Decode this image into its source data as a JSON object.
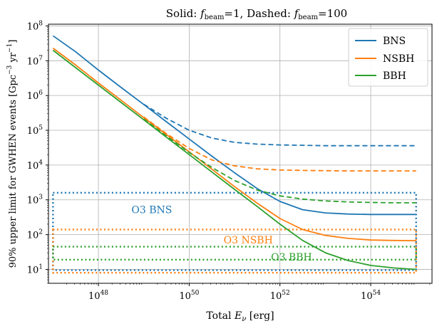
{
  "chart_data": {
    "type": "line",
    "title": "Solid: f_beam=1, Dashed: f_beam=100",
    "title_parts": {
      "prefix": "Solid: ",
      "f1": "f",
      "f1_sub": "beam",
      "eq1": "=1, Dashed: ",
      "f2": "f",
      "f2_sub": "beam",
      "eq2": "=100"
    },
    "xlabel": "Total E_ν [erg]",
    "xlabel_parts": {
      "prefix": "Total ",
      "E": "E",
      "E_sub": "ν",
      "suffix": " [erg]"
    },
    "ylabel": "90% upper limit for GWHEN events [Gpc⁻³ yr⁻¹]",
    "ylabel_parts": {
      "text": "90% upper limit for GWHEN events [Gpc",
      "sup1": "−3",
      "mid": " yr",
      "sup2": "−1",
      "end": "]"
    },
    "x_scale": "log",
    "y_scale": "log",
    "xlim_exp": [
      46.9,
      55.35
    ],
    "ylim_exp": [
      0.6,
      8.05
    ],
    "x_ticks": [
      {
        "value": 1e+48,
        "base": "10",
        "exp": "48"
      },
      {
        "value": 1e+50,
        "base": "10",
        "exp": "50"
      },
      {
        "value": 1e+52,
        "base": "10",
        "exp": "52"
      },
      {
        "value": 1e+54,
        "base": "10",
        "exp": "54"
      }
    ],
    "y_ticks": [
      {
        "value": 10.0,
        "base": "10",
        "exp": "1"
      },
      {
        "value": 100.0,
        "base": "10",
        "exp": "2"
      },
      {
        "value": 1000.0,
        "base": "10",
        "exp": "3"
      },
      {
        "value": 10000.0,
        "base": "10",
        "exp": "4"
      },
      {
        "value": 100000.0,
        "base": "10",
        "exp": "5"
      },
      {
        "value": 1000000.0,
        "base": "10",
        "exp": "6"
      },
      {
        "value": 10000000.0,
        "base": "10",
        "exp": "7"
      },
      {
        "value": 100000000.0,
        "base": "10",
        "exp": "8"
      }
    ],
    "grid": true,
    "legend": {
      "placement": "top-right",
      "entries": [
        {
          "name": "BNS",
          "color": "#1f77b4"
        },
        {
          "name": "NSBH",
          "color": "#ff7f0e"
        },
        {
          "name": "BBH",
          "color": "#2ca02c"
        }
      ]
    },
    "series": [
      {
        "name": "BNS",
        "style": "solid",
        "color": "#1f77b4",
        "x_exp": [
          47.0,
          47.5,
          48.0,
          48.5,
          49.0,
          49.5,
          50.0,
          50.5,
          51.0,
          51.5,
          52.0,
          52.5,
          53.0,
          53.5,
          54.0,
          54.5,
          55.0
        ],
        "y": [
          52000000.0,
          18000000.0,
          5400000.0,
          1700000.0,
          550000.0,
          175000.0,
          56000.0,
          18000.0,
          6000,
          2100,
          900,
          520,
          420,
          390,
          380,
          380,
          380
        ]
      },
      {
        "name": "BNS",
        "style": "dashed",
        "color": "#1f77b4",
        "x_exp": [
          49.0,
          49.5,
          50.0,
          50.5,
          51.0,
          51.5,
          52.0,
          52.5,
          53.0,
          53.5,
          54.0,
          54.5,
          55.0
        ],
        "y": [
          560000.0,
          220000.0,
          100000.0,
          60000.0,
          45000.0,
          40000.0,
          38000.0,
          37000.0,
          36000.0,
          36000.0,
          36000.0,
          36000.0,
          36000.0
        ]
      },
      {
        "name": "NSBH",
        "style": "solid",
        "color": "#ff7f0e",
        "x_exp": [
          47.0,
          47.5,
          48.0,
          48.5,
          49.0,
          49.5,
          50.0,
          50.5,
          51.0,
          51.5,
          52.0,
          52.5,
          53.0,
          53.5,
          54.0,
          54.5,
          55.0
        ],
        "y": [
          23000000.0,
          7500000.0,
          2300000.0,
          730000.0,
          230000.0,
          75000.0,
          24000.0,
          7600.0,
          2400.0,
          800,
          290,
          140,
          95,
          78,
          70,
          68,
          67
        ]
      },
      {
        "name": "NSBH",
        "style": "dashed",
        "color": "#ff7f0e",
        "x_exp": [
          49.0,
          49.5,
          50.0,
          50.5,
          51.0,
          51.5,
          52.0,
          52.5,
          53.0,
          53.5,
          54.0,
          54.5,
          55.0
        ],
        "y": [
          240000.0,
          80000.0,
          30000.0,
          14000.0,
          9500.0,
          7800.0,
          7200.0,
          7000.0,
          6900.0,
          6800.0,
          6800.0,
          6800.0,
          6800.0
        ]
      },
      {
        "name": "BBH",
        "style": "solid",
        "color": "#2ca02c",
        "x_exp": [
          47.0,
          47.5,
          48.0,
          48.5,
          49.0,
          49.5,
          50.0,
          50.5,
          51.0,
          51.5,
          52.0,
          52.5,
          53.0,
          53.5,
          54.0,
          54.5,
          55.0
        ],
        "y": [
          20000000.0,
          6300000.0,
          2000000.0,
          630000.0,
          200000.0,
          63000.0,
          20000.0,
          6300.0,
          2000.0,
          640,
          200,
          68,
          30,
          18,
          13,
          11,
          10
        ]
      },
      {
        "name": "BBH",
        "style": "dashed",
        "color": "#2ca02c",
        "x_exp": [
          49.0,
          49.5,
          50.0,
          50.5,
          51.0,
          51.5,
          52.0,
          52.5,
          53.0,
          53.5,
          54.0,
          54.5,
          55.0
        ],
        "y": [
          210000.0,
          68000.0,
          23000.0,
          8500.0,
          3600.0,
          1900.0,
          1300.0,
          1050.0,
          930,
          870,
          840,
          820,
          820
        ]
      }
    ],
    "o3_limits": [
      {
        "label": "O3 BNS",
        "color": "#1f77b4",
        "upper": 1600,
        "lower": 9.5,
        "label_at": {
          "x": 1.5e+49,
          "y": 520
        }
      },
      {
        "label": "O3 NSBH",
        "color": "#ff7f0e",
        "upper": 140,
        "lower": 8.0,
        "label_at": {
          "x": 2e+51,
          "y": 70
        }
      },
      {
        "label": "O3 BBH",
        "color": "#2ca02c",
        "upper": 45,
        "lower": 19,
        "label_at": {
          "x": 1.8e+52,
          "y": 23
        }
      }
    ],
    "o3_x_range": [
      1e+47,
      1e+55
    ]
  }
}
